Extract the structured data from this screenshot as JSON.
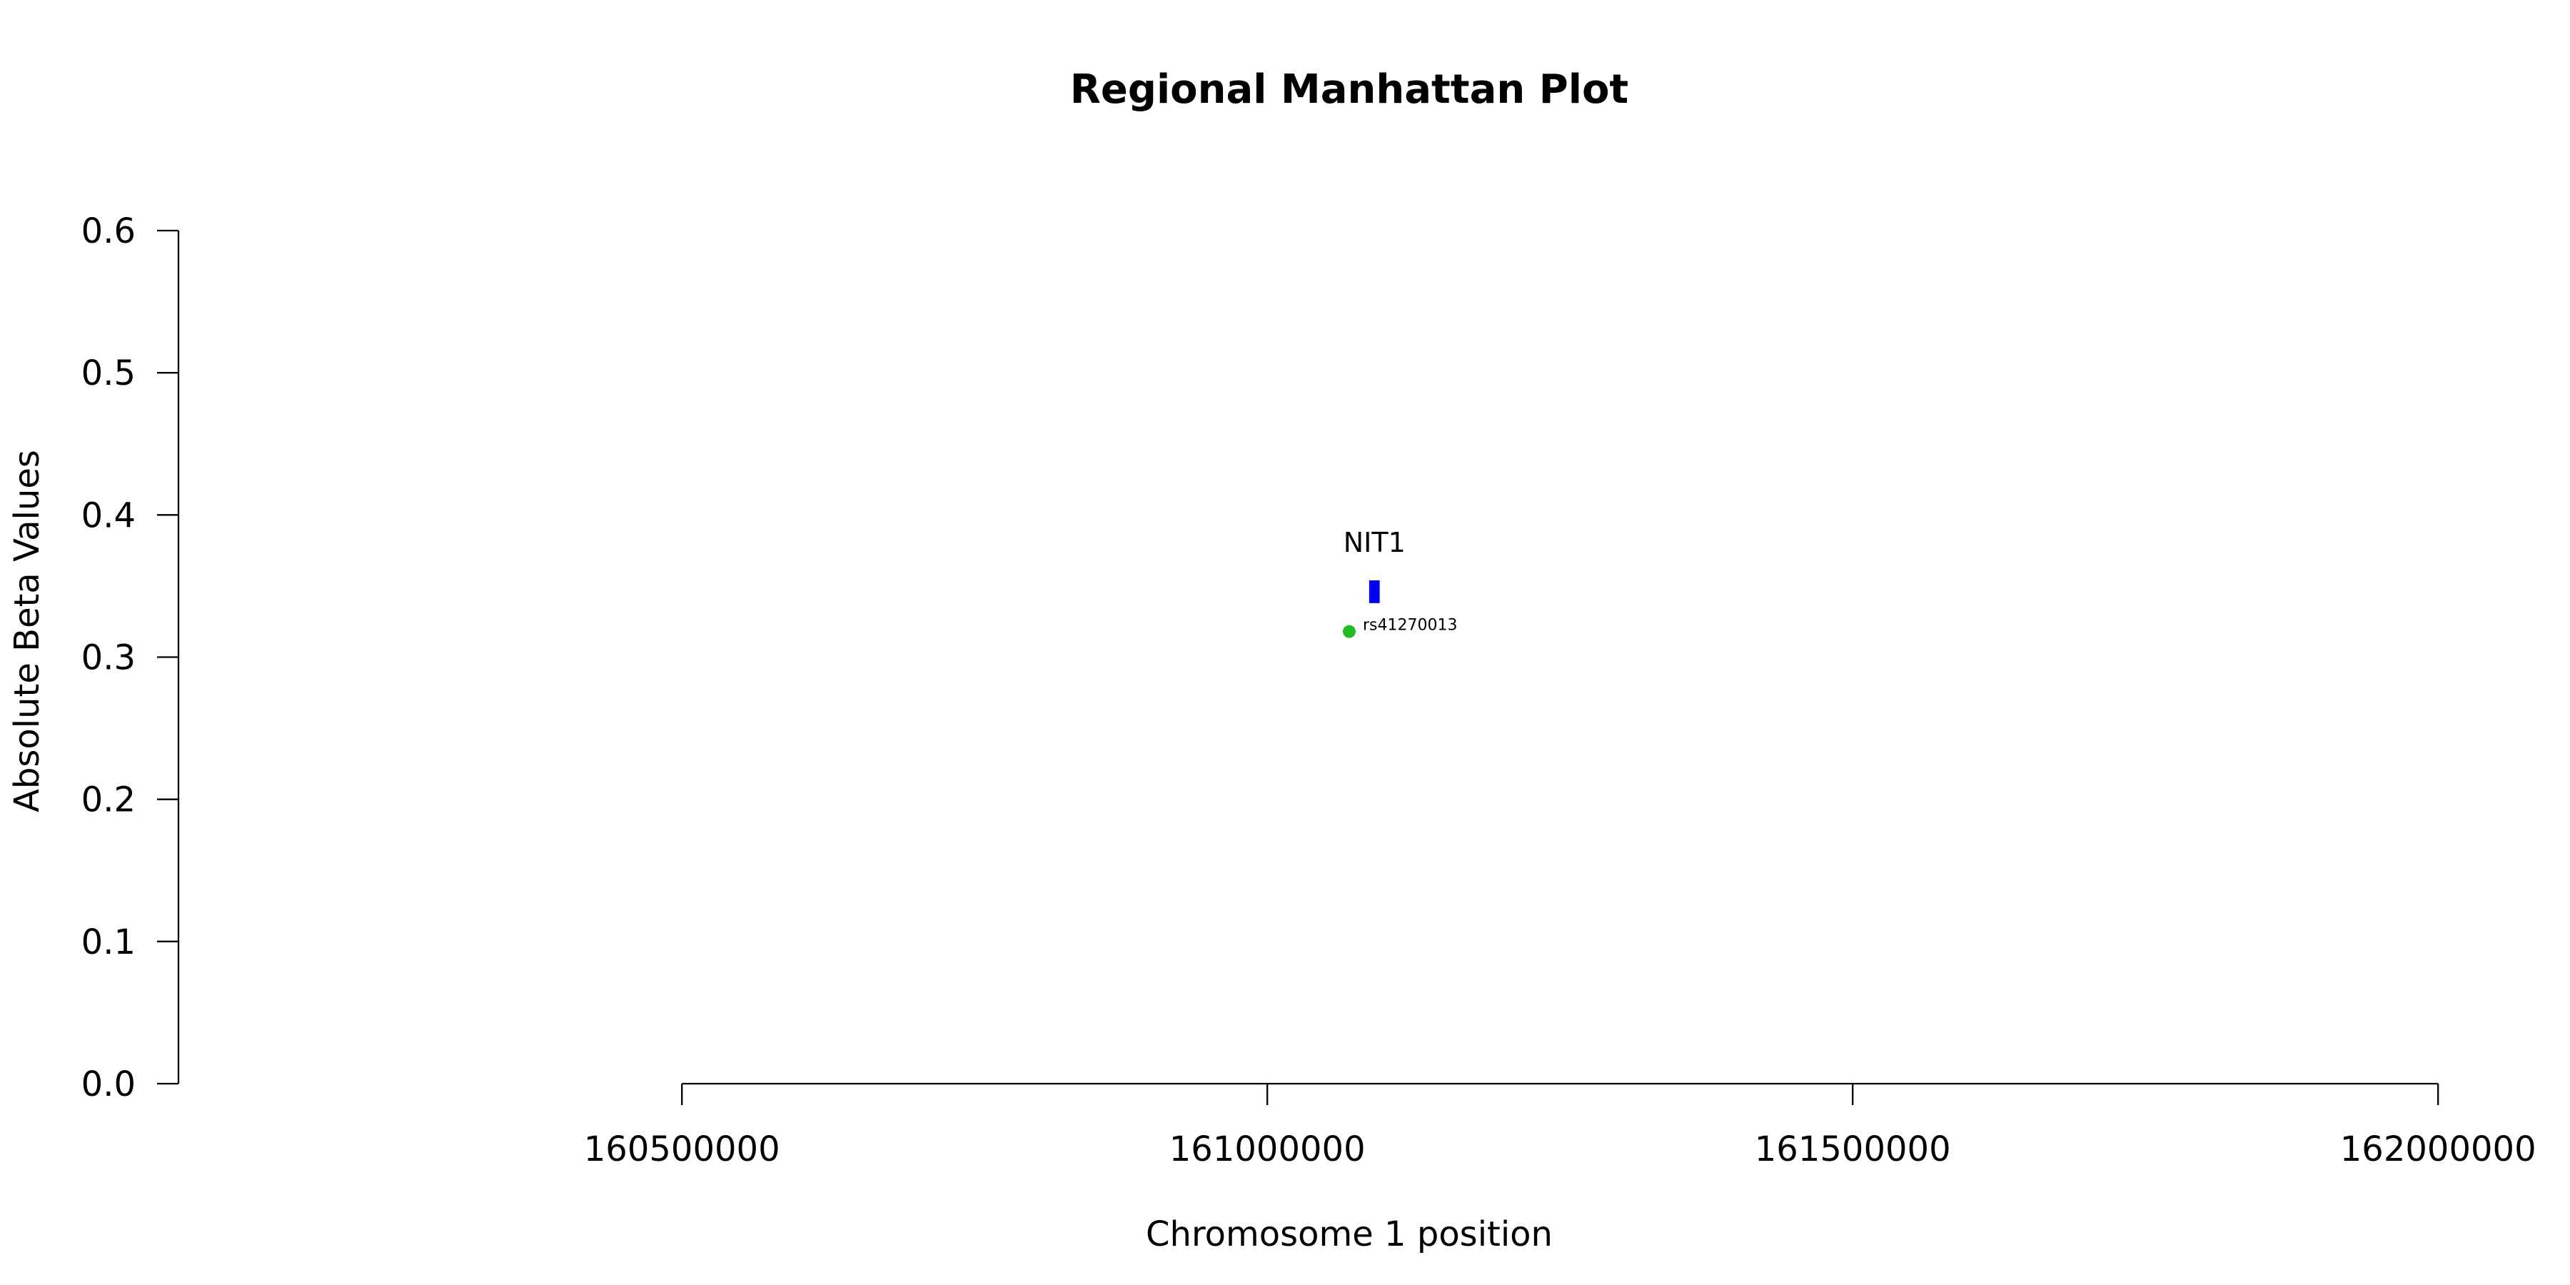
{
  "chart_data": {
    "type": "scatter",
    "title": "Regional Manhattan Plot",
    "xlabel": "Chromosome 1 position",
    "ylabel": "Absolute Beta Values",
    "xlim": [
      160070000,
      162070000
    ],
    "ylim": [
      0,
      0.6
    ],
    "x_ticks": [
      160500000,
      161000000,
      161500000,
      162000000
    ],
    "x_tick_labels": [
      "160500000",
      "161000000",
      "161500000",
      "162000000"
    ],
    "y_ticks": [
      0.0,
      0.1,
      0.2,
      0.3,
      0.4,
      0.5,
      0.6
    ],
    "y_tick_labels": [
      "0.0",
      "0.1",
      "0.2",
      "0.3",
      "0.4",
      "0.5",
      "0.6"
    ],
    "x_axis_range": [
      160500000,
      162000000
    ],
    "grid": false,
    "series": [
      {
        "points": [
          {
            "label": "rs41270013",
            "x": 161070000,
            "y": 0.318,
            "color": "#22bb22"
          }
        ]
      }
    ],
    "genes": [
      {
        "name": "NIT1",
        "start": 161087000,
        "end": 161096000,
        "y_low": 0.338,
        "y_high": 0.354,
        "color": "#0000ee"
      }
    ]
  }
}
